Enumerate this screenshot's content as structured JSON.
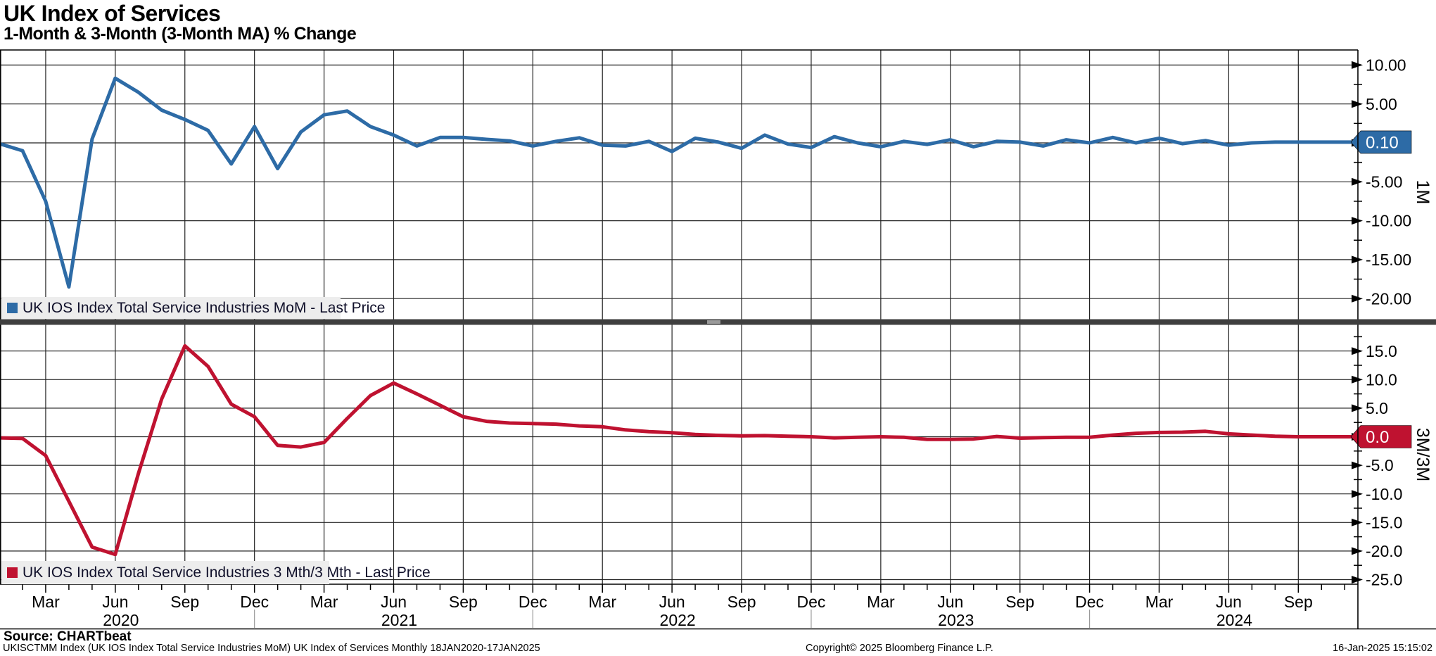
{
  "header": {
    "title": "UK Index of Services",
    "subtitle": "1-Month & 3-Month (3-Month MA) % Change"
  },
  "source_line": "Source: CHARTbeat",
  "footer": {
    "left": "UKISCTMM Index (UK IOS Index Total Service Industries MoM) UK Index of Services  Monthly 18JAN2020-17JAN2025",
    "center": "Copyright© 2025 Bloomberg Finance L.P.",
    "right": "16-Jan-2025 15:15:02"
  },
  "x_axis": {
    "start_month": "2020-01",
    "quarter_ticks": [
      {
        "month_index": 2,
        "label": "Mar"
      },
      {
        "month_index": 5,
        "label": "Jun"
      },
      {
        "month_index": 8,
        "label": "Sep"
      },
      {
        "month_index": 11,
        "label": "Dec"
      },
      {
        "month_index": 14,
        "label": "Mar"
      },
      {
        "month_index": 17,
        "label": "Jun"
      },
      {
        "month_index": 20,
        "label": "Sep"
      },
      {
        "month_index": 23,
        "label": "Dec"
      },
      {
        "month_index": 26,
        "label": "Mar"
      },
      {
        "month_index": 29,
        "label": "Jun"
      },
      {
        "month_index": 32,
        "label": "Sep"
      },
      {
        "month_index": 35,
        "label": "Dec"
      },
      {
        "month_index": 38,
        "label": "Mar"
      },
      {
        "month_index": 41,
        "label": "Jun"
      },
      {
        "month_index": 44,
        "label": "Sep"
      },
      {
        "month_index": 47,
        "label": "Dec"
      },
      {
        "month_index": 50,
        "label": "Mar"
      },
      {
        "month_index": 53,
        "label": "Jun"
      },
      {
        "month_index": 56,
        "label": "Sep"
      }
    ],
    "year_labels": [
      {
        "month_index": 5,
        "label": "2020"
      },
      {
        "month_index": 17,
        "label": "2021"
      },
      {
        "month_index": 29,
        "label": "2022"
      },
      {
        "month_index": 41,
        "label": "2023"
      },
      {
        "month_index": 53,
        "label": "2024"
      }
    ],
    "year_separator_month_indices": [
      11,
      23,
      35,
      47
    ]
  },
  "chart_data": [
    {
      "type": "line",
      "panel": "top",
      "axis_title": "1M",
      "legend": "UK IOS Index Total Service Industries MoM - Last Price",
      "color": "#2d6ba6",
      "last_value_label": "0.10",
      "ylim": [
        -22.5,
        11.9
      ],
      "y_major_ticks": [
        {
          "value": 10,
          "label": "10.00"
        },
        {
          "value": 5,
          "label": "5.00"
        },
        {
          "value": 0,
          "label": ""
        },
        {
          "value": -5,
          "label": "-5.00"
        },
        {
          "value": -10,
          "label": "-10.00"
        },
        {
          "value": -15,
          "label": "-15.00"
        },
        {
          "value": -20,
          "label": "-20.00"
        }
      ],
      "start_month": "2020-01",
      "frequency": "monthly",
      "values": [
        -0.1,
        -1.0,
        -7.5,
        -18.5,
        0.5,
        8.3,
        6.5,
        4.2,
        3.0,
        1.6,
        -2.7,
        2.1,
        -3.3,
        1.4,
        3.6,
        4.1,
        2.1,
        1.0,
        -0.4,
        0.7,
        0.7,
        0.45,
        0.25,
        -0.4,
        0.2,
        0.65,
        -0.3,
        -0.4,
        0.2,
        -1.1,
        0.6,
        0.1,
        -0.7,
        1.0,
        -0.15,
        -0.6,
        0.8,
        0.0,
        -0.5,
        0.2,
        -0.2,
        0.4,
        -0.5,
        0.2,
        0.1,
        -0.4,
        0.4,
        0.0,
        0.7,
        0.0,
        0.6,
        -0.1,
        0.3,
        -0.3,
        0.0,
        0.1,
        0.1,
        0.1,
        0.1
      ]
    },
    {
      "type": "line",
      "panel": "bottom",
      "axis_title": "3M/3M",
      "legend": "UK IOS Index Total Service Industries 3 Mth/3 Mth - Last Price",
      "color": "#bf1230",
      "last_value_label": "0.0",
      "ylim": [
        -25.8,
        19.6
      ],
      "y_major_ticks": [
        {
          "value": 15,
          "label": "15.0"
        },
        {
          "value": 10,
          "label": "10.0"
        },
        {
          "value": 5,
          "label": "5.0"
        },
        {
          "value": 0,
          "label": ""
        },
        {
          "value": -5,
          "label": "-5.0"
        },
        {
          "value": -10,
          "label": "-10.0"
        },
        {
          "value": -15,
          "label": "-15.0"
        },
        {
          "value": -20,
          "label": "-20.0"
        },
        {
          "value": -25,
          "label": "-25.0"
        }
      ],
      "start_month": "2020-01",
      "frequency": "monthly",
      "values": [
        -0.2,
        -0.3,
        -3.3,
        -11.3,
        -19.3,
        -20.6,
        -6.4,
        6.6,
        15.9,
        12.3,
        5.7,
        3.5,
        -1.5,
        -1.8,
        -1.0,
        3.2,
        7.2,
        9.4,
        7.5,
        5.5,
        3.5,
        2.7,
        2.4,
        2.3,
        2.2,
        1.9,
        1.75,
        1.2,
        0.9,
        0.7,
        0.4,
        0.25,
        0.15,
        0.2,
        0.1,
        0.0,
        -0.2,
        -0.1,
        0.0,
        -0.1,
        -0.45,
        -0.45,
        -0.4,
        0.05,
        -0.25,
        -0.15,
        -0.1,
        -0.1,
        0.3,
        0.6,
        0.75,
        0.8,
        0.95,
        0.5,
        0.3,
        0.1,
        0.0,
        0.0,
        0.0
      ]
    }
  ],
  "ui_colors": {
    "grid": "#222222",
    "frame": "#000000",
    "divider": "#3f3f3f",
    "divider_handle": "#9a9a9a",
    "legend_bg": "#ededed",
    "year_separator": "#999999"
  }
}
